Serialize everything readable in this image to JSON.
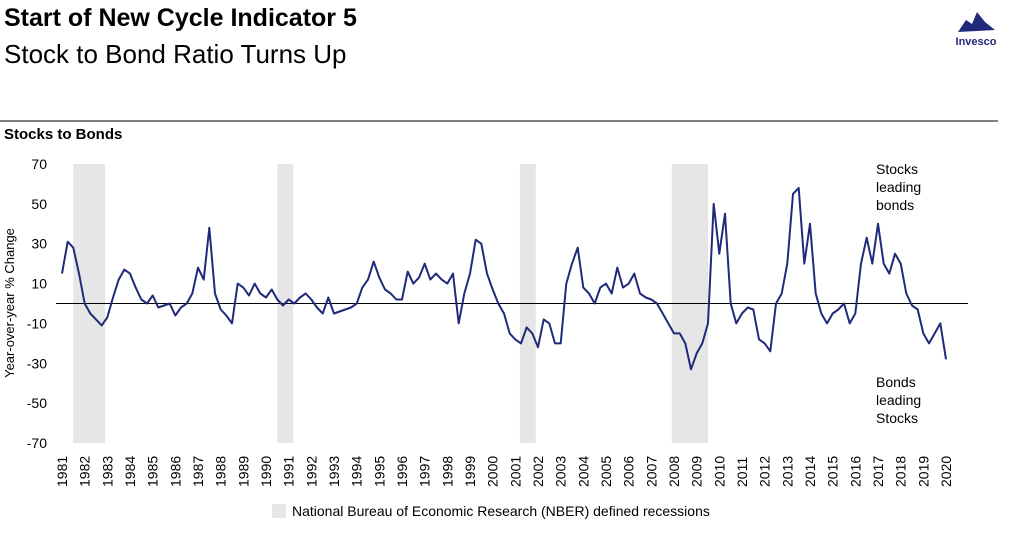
{
  "header": {
    "title": "Start of New Cycle Indicator 5",
    "subtitle": "Stock to Bond Ratio Turns Up",
    "logo": "Invesco"
  },
  "chart_data": {
    "type": "line",
    "title": "Stocks to Bonds",
    "y_label": "Year-over-year % Change",
    "x": [
      1981,
      1981.25,
      1981.5,
      1981.75,
      1982,
      1982.25,
      1982.5,
      1982.75,
      1983,
      1983.25,
      1983.5,
      1983.75,
      1984,
      1984.25,
      1984.5,
      1984.75,
      1985,
      1985.25,
      1985.5,
      1985.75,
      1986,
      1986.25,
      1986.5,
      1986.75,
      1987,
      1987.25,
      1987.5,
      1987.75,
      1988,
      1988.25,
      1988.5,
      1988.75,
      1989,
      1989.25,
      1989.5,
      1989.75,
      1990,
      1990.25,
      1990.5,
      1990.75,
      1991,
      1991.25,
      1991.5,
      1991.75,
      1992,
      1992.25,
      1992.5,
      1992.75,
      1993,
      1993.25,
      1993.5,
      1993.75,
      1994,
      1994.25,
      1994.5,
      1994.75,
      1995,
      1995.25,
      1995.5,
      1995.75,
      1996,
      1996.25,
      1996.5,
      1996.75,
      1997,
      1997.25,
      1997.5,
      1997.75,
      1998,
      1998.25,
      1998.5,
      1998.75,
      1999,
      1999.25,
      1999.5,
      1999.75,
      2000,
      2000.25,
      2000.5,
      2000.75,
      2001,
      2001.25,
      2001.5,
      2001.75,
      2002,
      2002.25,
      2002.5,
      2002.75,
      2003,
      2003.25,
      2003.5,
      2003.75,
      2004,
      2004.25,
      2004.5,
      2004.75,
      2005,
      2005.25,
      2005.5,
      2005.75,
      2006,
      2006.25,
      2006.5,
      2006.75,
      2007,
      2007.25,
      2007.5,
      2007.75,
      2008,
      2008.25,
      2008.5,
      2008.75,
      2009,
      2009.25,
      2009.5,
      2009.75,
      2010,
      2010.25,
      2010.5,
      2010.75,
      2011,
      2011.25,
      2011.5,
      2011.75,
      2012,
      2012.25,
      2012.5,
      2012.75,
      2013,
      2013.25,
      2013.5,
      2013.75,
      2014,
      2014.25,
      2014.5,
      2014.75,
      2015,
      2015.25,
      2015.5,
      2015.75,
      2016,
      2016.25,
      2016.5,
      2016.75,
      2017,
      2017.25,
      2017.5,
      2017.75,
      2018,
      2018.25,
      2018.5,
      2018.75,
      2019,
      2019.25,
      2019.5,
      2019.75,
      2020
    ],
    "series": [
      {
        "name": "Stocks to Bonds",
        "color": "#1f2a7a",
        "values": [
          15,
          31,
          28,
          15,
          0,
          -5,
          -8,
          -11,
          -7,
          3,
          12,
          17,
          15,
          8,
          2,
          0,
          4,
          -2,
          -1,
          0,
          -6,
          -2,
          0,
          5,
          18,
          12,
          38,
          5,
          -3,
          -6,
          -10,
          10,
          8,
          4,
          10,
          5,
          3,
          7,
          2,
          -1,
          2,
          0,
          3,
          5,
          2,
          -2,
          -5,
          3,
          -5,
          -4,
          -3,
          -2,
          0,
          8,
          12,
          21,
          13,
          7,
          5,
          2,
          2,
          16,
          10,
          13,
          20,
          12,
          15,
          12,
          10,
          15,
          -10,
          5,
          15,
          32,
          30,
          15,
          7,
          0,
          -5,
          -15,
          -18,
          -20,
          -12,
          -15,
          -22,
          -8,
          -10,
          -20,
          -20,
          10,
          20,
          28,
          8,
          5,
          0,
          8,
          10,
          5,
          18,
          8,
          10,
          15,
          5,
          3,
          2,
          0,
          -5,
          -10,
          -15,
          -15,
          -20,
          -33,
          -25,
          -20,
          -10,
          50,
          25,
          45,
          0,
          -10,
          -5,
          -2,
          -3,
          -18,
          -20,
          -24,
          0,
          5,
          20,
          55,
          58,
          20,
          40,
          5,
          -5,
          -10,
          -5,
          -3,
          0,
          -10,
          -5,
          20,
          33,
          20,
          40,
          20,
          15,
          25,
          20,
          5,
          -1,
          -3,
          -15,
          -20,
          -15,
          -10,
          -28
        ]
      }
    ],
    "recessions": [
      [
        1981.5,
        1982.9
      ],
      [
        1990.5,
        1991.2
      ],
      [
        2001.2,
        2001.9
      ],
      [
        2007.9,
        2009.5
      ]
    ],
    "recession_label": "National Bureau of Economic Research (NBER) defined recessions",
    "recession_color": "#e6e6e6",
    "annotations": [
      [
        "Stocks",
        "leading",
        "bonds"
      ],
      [
        "Bonds",
        "leading",
        "Stocks"
      ]
    ],
    "xlim": [
      1981,
      2020
    ],
    "ylim": [
      -70,
      70
    ],
    "xticks": [
      1981,
      1982,
      1983,
      1984,
      1985,
      1986,
      1987,
      1988,
      1989,
      1990,
      1991,
      1992,
      1993,
      1994,
      1995,
      1996,
      1997,
      1998,
      1999,
      2000,
      2001,
      2002,
      2003,
      2004,
      2005,
      2006,
      2007,
      2008,
      2009,
      2010,
      2011,
      2012,
      2013,
      2014,
      2015,
      2016,
      2017,
      2018,
      2019,
      2020
    ],
    "yticks": [
      -70,
      -50,
      -30,
      -10,
      10,
      30,
      50,
      70
    ]
  }
}
